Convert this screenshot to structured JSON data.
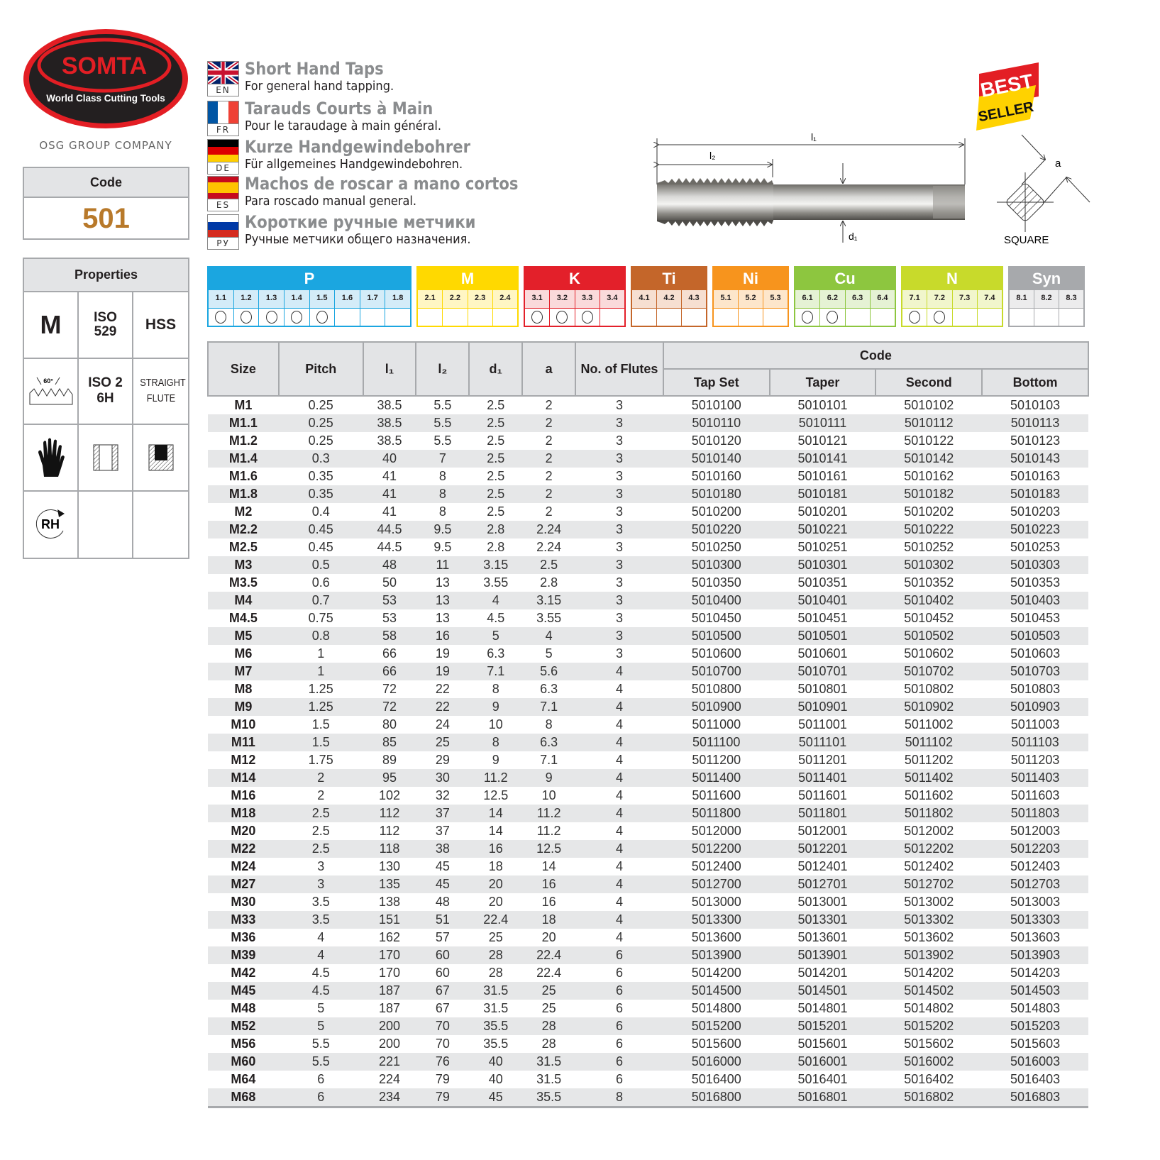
{
  "brand": {
    "logo_text": "SOMTA",
    "tagline": "World Class Cutting Tools",
    "group": "OSG GROUP COMPANY",
    "colors": {
      "red": "#e31e24",
      "black": "#231f20"
    }
  },
  "code_box": {
    "label": "Code",
    "value": "501"
  },
  "properties": {
    "title": "Properties",
    "cells": [
      "M",
      "ISO 529",
      "HSS",
      "60°",
      "ISO 2 6H",
      "STRAIGHT FLUTE",
      "hand-icon",
      "through-hole-icon",
      "blind-hole-icon",
      "RH",
      "",
      ""
    ]
  },
  "languages": [
    {
      "code": "EN",
      "title": "Short Hand Taps",
      "subtitle": "For general hand tapping."
    },
    {
      "code": "FR",
      "title": "Tarauds Courts à Main",
      "subtitle": "Pour le taraudage à main général."
    },
    {
      "code": "DE",
      "title": "Kurze Handgewindebohrer",
      "subtitle": "Für allgemeines Handgewindebohren."
    },
    {
      "code": "ES",
      "title": "Machos de roscar a mano cortos",
      "subtitle": "Para roscado manual general."
    },
    {
      "code": "РУ",
      "title": "Короткие ручные метчики",
      "subtitle": "Ручные метчики общего назначения."
    }
  ],
  "badge": {
    "line1": "BEST",
    "line2": "SELLER"
  },
  "drawing": {
    "l1": "l₁",
    "l2": "l₂",
    "d1": "d₁",
    "a": "a",
    "square": "SQUARE"
  },
  "materials": [
    {
      "name": "P",
      "color": "#1ba6e0",
      "tint": "#d4ecf8",
      "subs": [
        "1.1",
        "1.2",
        "1.3",
        "1.4",
        "1.5",
        "1.6",
        "1.7",
        "1.8"
      ],
      "suitable": [
        true,
        true,
        true,
        true,
        true,
        false,
        false,
        false
      ]
    },
    {
      "name": "M",
      "color": "#ffd900",
      "tint": "#fff6c4",
      "subs": [
        "2.1",
        "2.2",
        "2.3",
        "2.4"
      ],
      "suitable": [
        false,
        false,
        false,
        false
      ]
    },
    {
      "name": "K",
      "color": "#e3202a",
      "tint": "#fadadb",
      "subs": [
        "3.1",
        "3.2",
        "3.3",
        "3.4"
      ],
      "suitable": [
        true,
        true,
        true,
        false
      ]
    },
    {
      "name": "Ti",
      "color": "#c4662a",
      "tint": "#f6dfd1",
      "subs": [
        "4.1",
        "4.2",
        "4.3"
      ],
      "suitable": [
        false,
        false,
        false
      ]
    },
    {
      "name": "Ni",
      "color": "#f7941d",
      "tint": "#fde6cb",
      "subs": [
        "5.1",
        "5.2",
        "5.3"
      ],
      "suitable": [
        false,
        false,
        false
      ]
    },
    {
      "name": "Cu",
      "color": "#8dc63f",
      "tint": "#e5f2d4",
      "subs": [
        "6.1",
        "6.2",
        "6.3",
        "6.4"
      ],
      "suitable": [
        true,
        true,
        false,
        false
      ]
    },
    {
      "name": "N",
      "color": "#c8da2b",
      "tint": "#f1f6cc",
      "subs": [
        "7.1",
        "7.2",
        "7.3",
        "7.4"
      ],
      "suitable": [
        true,
        true,
        false,
        false
      ]
    },
    {
      "name": "Syn",
      "color": "#a7a9ac",
      "tint": "#ececed",
      "subs": [
        "8.1",
        "8.2",
        "8.3"
      ],
      "suitable": [
        false,
        false,
        false
      ]
    }
  ],
  "table": {
    "headers": {
      "size": "Size",
      "pitch": "Pitch",
      "l1": "l₁",
      "l2": "l₂",
      "d1": "d₁",
      "a": "a",
      "flutes": "No. of Flutes",
      "code": "Code",
      "tapset": "Tap Set",
      "taper": "Taper",
      "second": "Second",
      "bottom": "Bottom"
    },
    "rows": [
      [
        "M1",
        "0.25",
        "38.5",
        "5.5",
        "2.5",
        "2",
        "3",
        "5010100",
        "5010101",
        "5010102",
        "5010103"
      ],
      [
        "M1.1",
        "0.25",
        "38.5",
        "5.5",
        "2.5",
        "2",
        "3",
        "5010110",
        "5010111",
        "5010112",
        "5010113"
      ],
      [
        "M1.2",
        "0.25",
        "38.5",
        "5.5",
        "2.5",
        "2",
        "3",
        "5010120",
        "5010121",
        "5010122",
        "5010123"
      ],
      [
        "M1.4",
        "0.3",
        "40",
        "7",
        "2.5",
        "2",
        "3",
        "5010140",
        "5010141",
        "5010142",
        "5010143"
      ],
      [
        "M1.6",
        "0.35",
        "41",
        "8",
        "2.5",
        "2",
        "3",
        "5010160",
        "5010161",
        "5010162",
        "5010163"
      ],
      [
        "M1.8",
        "0.35",
        "41",
        "8",
        "2.5",
        "2",
        "3",
        "5010180",
        "5010181",
        "5010182",
        "5010183"
      ],
      [
        "M2",
        "0.4",
        "41",
        "8",
        "2.5",
        "2",
        "3",
        "5010200",
        "5010201",
        "5010202",
        "5010203"
      ],
      [
        "M2.2",
        "0.45",
        "44.5",
        "9.5",
        "2.8",
        "2.24",
        "3",
        "5010220",
        "5010221",
        "5010222",
        "5010223"
      ],
      [
        "M2.5",
        "0.45",
        "44.5",
        "9.5",
        "2.8",
        "2.24",
        "3",
        "5010250",
        "5010251",
        "5010252",
        "5010253"
      ],
      [
        "M3",
        "0.5",
        "48",
        "11",
        "3.15",
        "2.5",
        "3",
        "5010300",
        "5010301",
        "5010302",
        "5010303"
      ],
      [
        "M3.5",
        "0.6",
        "50",
        "13",
        "3.55",
        "2.8",
        "3",
        "5010350",
        "5010351",
        "5010352",
        "5010353"
      ],
      [
        "M4",
        "0.7",
        "53",
        "13",
        "4",
        "3.15",
        "3",
        "5010400",
        "5010401",
        "5010402",
        "5010403"
      ],
      [
        "M4.5",
        "0.75",
        "53",
        "13",
        "4.5",
        "3.55",
        "3",
        "5010450",
        "5010451",
        "5010452",
        "5010453"
      ],
      [
        "M5",
        "0.8",
        "58",
        "16",
        "5",
        "4",
        "3",
        "5010500",
        "5010501",
        "5010502",
        "5010503"
      ],
      [
        "M6",
        "1",
        "66",
        "19",
        "6.3",
        "5",
        "3",
        "5010600",
        "5010601",
        "5010602",
        "5010603"
      ],
      [
        "M7",
        "1",
        "66",
        "19",
        "7.1",
        "5.6",
        "4",
        "5010700",
        "5010701",
        "5010702",
        "5010703"
      ],
      [
        "M8",
        "1.25",
        "72",
        "22",
        "8",
        "6.3",
        "4",
        "5010800",
        "5010801",
        "5010802",
        "5010803"
      ],
      [
        "M9",
        "1.25",
        "72",
        "22",
        "9",
        "7.1",
        "4",
        "5010900",
        "5010901",
        "5010902",
        "5010903"
      ],
      [
        "M10",
        "1.5",
        "80",
        "24",
        "10",
        "8",
        "4",
        "5011000",
        "5011001",
        "5011002",
        "5011003"
      ],
      [
        "M11",
        "1.5",
        "85",
        "25",
        "8",
        "6.3",
        "4",
        "5011100",
        "5011101",
        "5011102",
        "5011103"
      ],
      [
        "M12",
        "1.75",
        "89",
        "29",
        "9",
        "7.1",
        "4",
        "5011200",
        "5011201",
        "5011202",
        "5011203"
      ],
      [
        "M14",
        "2",
        "95",
        "30",
        "11.2",
        "9",
        "4",
        "5011400",
        "5011401",
        "5011402",
        "5011403"
      ],
      [
        "M16",
        "2",
        "102",
        "32",
        "12.5",
        "10",
        "4",
        "5011600",
        "5011601",
        "5011602",
        "5011603"
      ],
      [
        "M18",
        "2.5",
        "112",
        "37",
        "14",
        "11.2",
        "4",
        "5011800",
        "5011801",
        "5011802",
        "5011803"
      ],
      [
        "M20",
        "2.5",
        "112",
        "37",
        "14",
        "11.2",
        "4",
        "5012000",
        "5012001",
        "5012002",
        "5012003"
      ],
      [
        "M22",
        "2.5",
        "118",
        "38",
        "16",
        "12.5",
        "4",
        "5012200",
        "5012201",
        "5012202",
        "5012203"
      ],
      [
        "M24",
        "3",
        "130",
        "45",
        "18",
        "14",
        "4",
        "5012400",
        "5012401",
        "5012402",
        "5012403"
      ],
      [
        "M27",
        "3",
        "135",
        "45",
        "20",
        "16",
        "4",
        "5012700",
        "5012701",
        "5012702",
        "5012703"
      ],
      [
        "M30",
        "3.5",
        "138",
        "48",
        "20",
        "16",
        "4",
        "5013000",
        "5013001",
        "5013002",
        "5013003"
      ],
      [
        "M33",
        "3.5",
        "151",
        "51",
        "22.4",
        "18",
        "4",
        "5013300",
        "5013301",
        "5013302",
        "5013303"
      ],
      [
        "M36",
        "4",
        "162",
        "57",
        "25",
        "20",
        "4",
        "5013600",
        "5013601",
        "5013602",
        "5013603"
      ],
      [
        "M39",
        "4",
        "170",
        "60",
        "28",
        "22.4",
        "6",
        "5013900",
        "5013901",
        "5013902",
        "5013903"
      ],
      [
        "M42",
        "4.5",
        "170",
        "60",
        "28",
        "22.4",
        "6",
        "5014200",
        "5014201",
        "5014202",
        "5014203"
      ],
      [
        "M45",
        "4.5",
        "187",
        "67",
        "31.5",
        "25",
        "6",
        "5014500",
        "5014501",
        "5014502",
        "5014503"
      ],
      [
        "M48",
        "5",
        "187",
        "67",
        "31.5",
        "25",
        "6",
        "5014800",
        "5014801",
        "5014802",
        "5014803"
      ],
      [
        "M52",
        "5",
        "200",
        "70",
        "35.5",
        "28",
        "6",
        "5015200",
        "5015201",
        "5015202",
        "5015203"
      ],
      [
        "M56",
        "5.5",
        "200",
        "70",
        "35.5",
        "28",
        "6",
        "5015600",
        "5015601",
        "5015602",
        "5015603"
      ],
      [
        "M60",
        "5.5",
        "221",
        "76",
        "40",
        "31.5",
        "6",
        "5016000",
        "5016001",
        "5016002",
        "5016003"
      ],
      [
        "M64",
        "6",
        "224",
        "79",
        "40",
        "31.5",
        "6",
        "5016400",
        "5016401",
        "5016402",
        "5016403"
      ],
      [
        "M68",
        "6",
        "234",
        "79",
        "45",
        "35.5",
        "8",
        "5016800",
        "5016801",
        "5016802",
        "5016803"
      ]
    ]
  }
}
